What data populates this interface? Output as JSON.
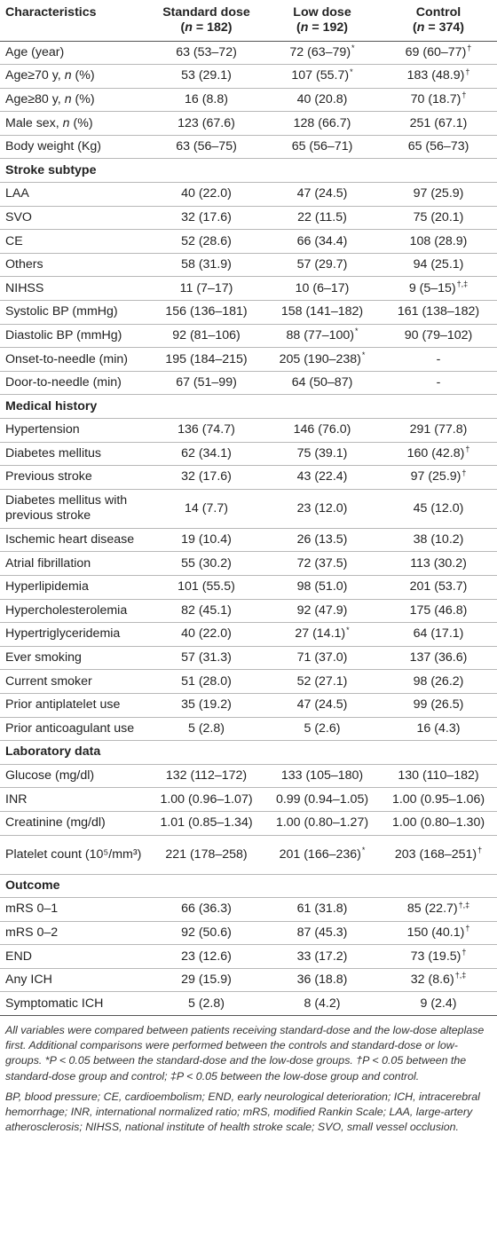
{
  "headers": [
    {
      "line1": "Characteristics",
      "line2": ""
    },
    {
      "line1": "Standard dose",
      "line2": "(n = 182)"
    },
    {
      "line1": "Low dose",
      "line2": "(n = 192)"
    },
    {
      "line1": "Control",
      "line2": "(n = 374)"
    }
  ],
  "rows": [
    {
      "type": "row",
      "label": "Age (year)",
      "cells": [
        {
          "v": "63 (53–72)",
          "s": ""
        },
        {
          "v": "72 (63–79)",
          "s": "*"
        },
        {
          "v": "69 (60–77)",
          "s": "†"
        }
      ]
    },
    {
      "type": "row",
      "label": "Age≥70 y, n (%)",
      "cells": [
        {
          "v": "53 (29.1)",
          "s": ""
        },
        {
          "v": "107 (55.7)",
          "s": "*"
        },
        {
          "v": "183 (48.9)",
          "s": "†"
        }
      ]
    },
    {
      "type": "row",
      "label": "Age≥80 y, n (%)",
      "cells": [
        {
          "v": "16 (8.8)",
          "s": ""
        },
        {
          "v": "40 (20.8)",
          "s": ""
        },
        {
          "v": "70 (18.7)",
          "s": "†"
        }
      ]
    },
    {
      "type": "row",
      "label": "Male sex, n (%)",
      "cells": [
        {
          "v": "123 (67.6)",
          "s": ""
        },
        {
          "v": "128 (66.7)",
          "s": ""
        },
        {
          "v": "251 (67.1)",
          "s": ""
        }
      ]
    },
    {
      "type": "row",
      "label": "Body weight (Kg)",
      "cells": [
        {
          "v": "63 (56–75)",
          "s": ""
        },
        {
          "v": "65 (56–71)",
          "s": ""
        },
        {
          "v": "65 (56–73)",
          "s": ""
        }
      ]
    },
    {
      "type": "section",
      "label": "Stroke subtype"
    },
    {
      "type": "row",
      "label": "LAA",
      "cells": [
        {
          "v": "40 (22.0)",
          "s": ""
        },
        {
          "v": "47 (24.5)",
          "s": ""
        },
        {
          "v": "97 (25.9)",
          "s": ""
        }
      ]
    },
    {
      "type": "row",
      "label": "SVO",
      "cells": [
        {
          "v": "32 (17.6)",
          "s": ""
        },
        {
          "v": "22 (11.5)",
          "s": ""
        },
        {
          "v": "75 (20.1)",
          "s": ""
        }
      ]
    },
    {
      "type": "row",
      "label": "CE",
      "cells": [
        {
          "v": "52 (28.6)",
          "s": ""
        },
        {
          "v": "66 (34.4)",
          "s": ""
        },
        {
          "v": "108 (28.9)",
          "s": ""
        }
      ]
    },
    {
      "type": "row",
      "label": "Others",
      "cells": [
        {
          "v": "58 (31.9)",
          "s": ""
        },
        {
          "v": "57 (29.7)",
          "s": ""
        },
        {
          "v": "94 (25.1)",
          "s": ""
        }
      ]
    },
    {
      "type": "row",
      "label": "NIHSS",
      "cells": [
        {
          "v": "11 (7–17)",
          "s": ""
        },
        {
          "v": "10 (6–17)",
          "s": ""
        },
        {
          "v": "9 (5–15)",
          "s": "†,‡"
        }
      ]
    },
    {
      "type": "row",
      "label": "Systolic BP (mmHg)",
      "cells": [
        {
          "v": "156 (136–181)",
          "s": ""
        },
        {
          "v": "158 (141–182)",
          "s": ""
        },
        {
          "v": "161 (138–182)",
          "s": ""
        }
      ]
    },
    {
      "type": "row",
      "label": "Diastolic BP (mmHg)",
      "cells": [
        {
          "v": "92 (81–106)",
          "s": ""
        },
        {
          "v": "88 (77–100)",
          "s": "*"
        },
        {
          "v": "90 (79–102)",
          "s": ""
        }
      ]
    },
    {
      "type": "row",
      "label": "Onset-to-needle (min)",
      "cells": [
        {
          "v": "195 (184–215)",
          "s": ""
        },
        {
          "v": "205 (190–238)",
          "s": "*"
        },
        {
          "v": "-",
          "s": ""
        }
      ]
    },
    {
      "type": "row",
      "label": "Door-to-needle (min)",
      "cells": [
        {
          "v": "67 (51–99)",
          "s": ""
        },
        {
          "v": "64 (50–87)",
          "s": ""
        },
        {
          "v": "-",
          "s": ""
        }
      ]
    },
    {
      "type": "section",
      "label": "Medical history"
    },
    {
      "type": "row",
      "label": "Hypertension",
      "cells": [
        {
          "v": "136 (74.7)",
          "s": ""
        },
        {
          "v": "146 (76.0)",
          "s": ""
        },
        {
          "v": "291 (77.8)",
          "s": ""
        }
      ]
    },
    {
      "type": "row",
      "label": "Diabetes mellitus",
      "cells": [
        {
          "v": "62 (34.1)",
          "s": ""
        },
        {
          "v": "75 (39.1)",
          "s": ""
        },
        {
          "v": "160 (42.8)",
          "s": "†"
        }
      ]
    },
    {
      "type": "row",
      "label": "Previous stroke",
      "cells": [
        {
          "v": "32 (17.6)",
          "s": ""
        },
        {
          "v": "43 (22.4)",
          "s": ""
        },
        {
          "v": "97 (25.9)",
          "s": "†"
        }
      ]
    },
    {
      "type": "tall",
      "label": "Diabetes mellitus with previous stroke",
      "cells": [
        {
          "v": "14 (7.7)",
          "s": ""
        },
        {
          "v": "23 (12.0)",
          "s": ""
        },
        {
          "v": "45 (12.0)",
          "s": ""
        }
      ]
    },
    {
      "type": "row",
      "label": "Ischemic heart disease",
      "cells": [
        {
          "v": "19 (10.4)",
          "s": ""
        },
        {
          "v": "26 (13.5)",
          "s": ""
        },
        {
          "v": "38 (10.2)",
          "s": ""
        }
      ]
    },
    {
      "type": "row",
      "label": "Atrial fibrillation",
      "cells": [
        {
          "v": "55 (30.2)",
          "s": ""
        },
        {
          "v": "72 (37.5)",
          "s": ""
        },
        {
          "v": "113 (30.2)",
          "s": ""
        }
      ]
    },
    {
      "type": "row",
      "label": "Hyperlipidemia",
      "cells": [
        {
          "v": "101 (55.5)",
          "s": ""
        },
        {
          "v": "98 (51.0)",
          "s": ""
        },
        {
          "v": "201 (53.7)",
          "s": ""
        }
      ]
    },
    {
      "type": "row",
      "label": "Hypercholesterolemia",
      "cells": [
        {
          "v": "82 (45.1)",
          "s": ""
        },
        {
          "v": "92 (47.9)",
          "s": ""
        },
        {
          "v": "175 (46.8)",
          "s": ""
        }
      ]
    },
    {
      "type": "row",
      "label": "Hypertriglyceridemia",
      "cells": [
        {
          "v": "40 (22.0)",
          "s": ""
        },
        {
          "v": "27 (14.1)",
          "s": "*"
        },
        {
          "v": "64 (17.1)",
          "s": ""
        }
      ]
    },
    {
      "type": "row",
      "label": "Ever smoking",
      "cells": [
        {
          "v": "57 (31.3)",
          "s": ""
        },
        {
          "v": "71 (37.0)",
          "s": ""
        },
        {
          "v": "137 (36.6)",
          "s": ""
        }
      ]
    },
    {
      "type": "row",
      "label": "Current smoker",
      "cells": [
        {
          "v": "51 (28.0)",
          "s": ""
        },
        {
          "v": "52 (27.1)",
          "s": ""
        },
        {
          "v": "98 (26.2)",
          "s": ""
        }
      ]
    },
    {
      "type": "row",
      "label": "Prior antiplatelet use",
      "cells": [
        {
          "v": "35 (19.2)",
          "s": ""
        },
        {
          "v": "47 (24.5)",
          "s": ""
        },
        {
          "v": "99 (26.5)",
          "s": ""
        }
      ]
    },
    {
      "type": "row",
      "label": "Prior anticoagulant use",
      "cells": [
        {
          "v": "5 (2.8)",
          "s": ""
        },
        {
          "v": "5 (2.6)",
          "s": ""
        },
        {
          "v": "16 (4.3)",
          "s": ""
        }
      ]
    },
    {
      "type": "section",
      "label": "Laboratory data"
    },
    {
      "type": "row",
      "label": "Glucose (mg/dl)",
      "cells": [
        {
          "v": "132 (112–172)",
          "s": ""
        },
        {
          "v": "133 (105–180)",
          "s": ""
        },
        {
          "v": "130 (110–182)",
          "s": ""
        }
      ]
    },
    {
      "type": "row",
      "label": "INR",
      "cells": [
        {
          "v": "1.00 (0.96–1.07)",
          "s": ""
        },
        {
          "v": "0.99 (0.94–1.05)",
          "s": ""
        },
        {
          "v": "1.00 (0.95–1.06)",
          "s": ""
        }
      ]
    },
    {
      "type": "row",
      "label": "Creatinine (mg/dl)",
      "cells": [
        {
          "v": "1.01 (0.85–1.34)",
          "s": ""
        },
        {
          "v": "1.00 (0.80–1.27)",
          "s": ""
        },
        {
          "v": "1.00 (0.80–1.30)",
          "s": ""
        }
      ]
    },
    {
      "type": "tall",
      "label": "Platelet count (10⁵/mm³)",
      "cells": [
        {
          "v": "221 (178–258)",
          "s": ""
        },
        {
          "v": "201 (166–236)",
          "s": "*"
        },
        {
          "v": "203 (168–251)",
          "s": "†"
        }
      ]
    },
    {
      "type": "section",
      "label": "Outcome"
    },
    {
      "type": "row",
      "label": "mRS 0–1",
      "cells": [
        {
          "v": "66 (36.3)",
          "s": ""
        },
        {
          "v": "61 (31.8)",
          "s": ""
        },
        {
          "v": "85 (22.7)",
          "s": "†,‡"
        }
      ]
    },
    {
      "type": "row",
      "label": "mRS 0–2",
      "cells": [
        {
          "v": "92 (50.6)",
          "s": ""
        },
        {
          "v": "87 (45.3)",
          "s": ""
        },
        {
          "v": "150 (40.1)",
          "s": "†"
        }
      ]
    },
    {
      "type": "row",
      "label": "END",
      "cells": [
        {
          "v": "23 (12.6)",
          "s": ""
        },
        {
          "v": "33 (17.2)",
          "s": ""
        },
        {
          "v": "73 (19.5)",
          "s": "†"
        }
      ]
    },
    {
      "type": "row",
      "label": "Any ICH",
      "cells": [
        {
          "v": "29 (15.9)",
          "s": ""
        },
        {
          "v": "36 (18.8)",
          "s": ""
        },
        {
          "v": "32 (8.6)",
          "s": "†,‡"
        }
      ]
    },
    {
      "type": "row",
      "label": "Symptomatic ICH",
      "cells": [
        {
          "v": "5 (2.8)",
          "s": ""
        },
        {
          "v": "8 (4.2)",
          "s": ""
        },
        {
          "v": "9 (2.4)",
          "s": ""
        }
      ]
    }
  ],
  "footnotes": {
    "comparison": "All variables were compared between patients receiving standard-dose and the low-dose alteplase first. Additional comparisons were performed between the controls and standard-dose or low-groups. *P < 0.05 between the standard-dose and the low-dose groups. †P < 0.05 between the standard-dose group and control; ‡P < 0.05 between the low-dose group and control.",
    "abbreviations": "BP, blood pressure; CE, cardioembolism; END, early neurological deterioration; ICH, intracerebral hemorrhage; INR, international normalized ratio; mRS, modified Rankin Scale; LAA, large-artery atherosclerosis; NIHSS, national institute of health stroke scale; SVO, small vessel occlusion."
  }
}
